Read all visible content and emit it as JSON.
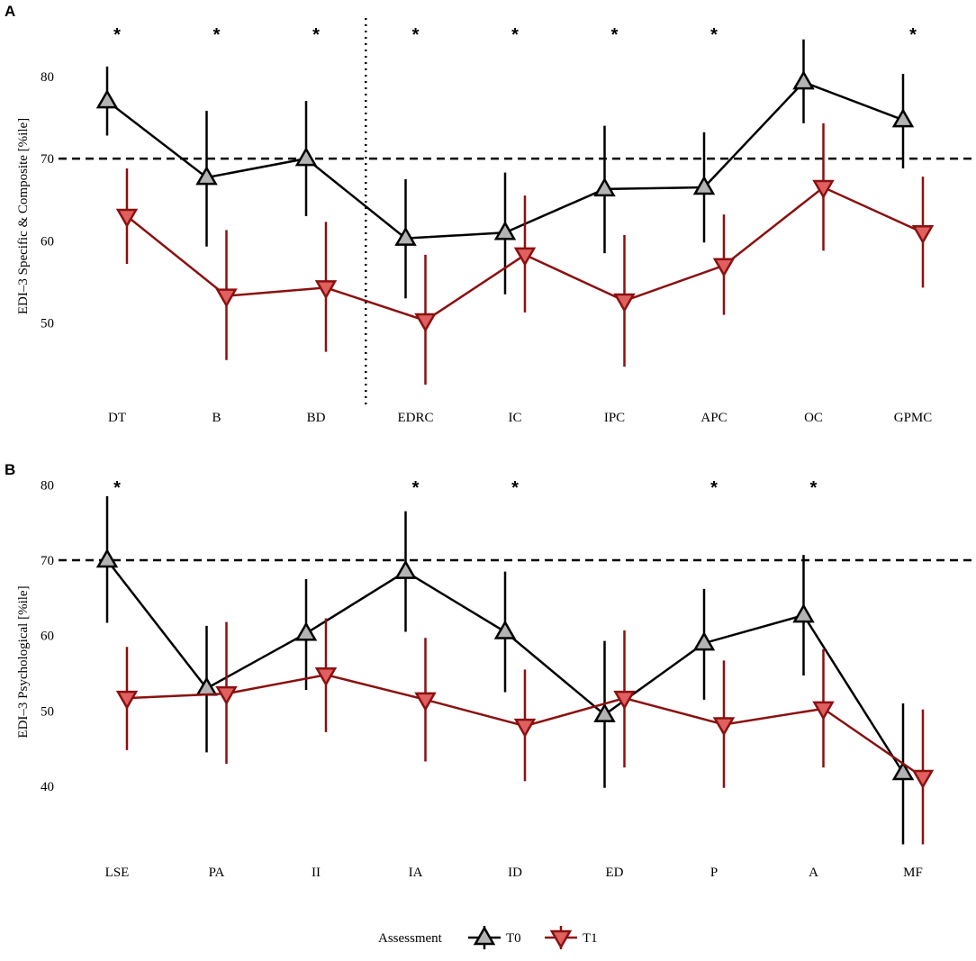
{
  "chart_data": [
    {
      "type": "line",
      "panel": "A",
      "ylabel": "EDI–3 Specific & Composite [%ile]",
      "ylim": [
        40,
        86
      ],
      "yticks": [
        50,
        60,
        70,
        80
      ],
      "threshold": 70,
      "divider_after_category": "BD",
      "categories": [
        "DT",
        "B",
        "BD",
        "EDRC",
        "IC",
        "IPC",
        "APC",
        "OC",
        "GPMC"
      ],
      "significance": [
        "*",
        "*",
        "*",
        "*",
        "*",
        "*",
        "*",
        "",
        "*"
      ],
      "series": [
        {
          "name": "T0",
          "marker": "triangle-up",
          "color": "#000000",
          "fill": "#b3b3b3",
          "values": [
            77,
            67.7,
            70,
            60.3,
            61,
            66.3,
            66.5,
            79.3,
            74.7
          ],
          "lower": [
            72.8,
            59.3,
            63,
            53,
            53.5,
            58.5,
            59.8,
            74.3,
            68.8
          ],
          "upper": [
            81.2,
            75.8,
            77,
            67.5,
            68.3,
            74,
            73.2,
            84.5,
            80.3
          ]
        },
        {
          "name": "T1",
          "marker": "triangle-down",
          "color": "#8b1010",
          "fill": "#e06060",
          "values": [
            63,
            53.3,
            54.3,
            50.3,
            58.3,
            52.7,
            57,
            66.5,
            61
          ],
          "lower": [
            57.2,
            45.5,
            46.5,
            42.5,
            51.3,
            44.7,
            51,
            58.8,
            54.3
          ],
          "upper": [
            68.8,
            61.3,
            62.3,
            58.3,
            65.5,
            60.7,
            63.2,
            74.3,
            67.8
          ]
        }
      ]
    },
    {
      "type": "line",
      "panel": "B",
      "ylabel": "EDI–3 Psychological [%ile]",
      "ylim": [
        32,
        81
      ],
      "yticks": [
        40,
        50,
        60,
        70,
        80
      ],
      "threshold": 70,
      "categories": [
        "LSE",
        "PA",
        "II",
        "IA",
        "ID",
        "ED",
        "P",
        "A",
        "MF"
      ],
      "significance": [
        "*",
        "",
        "",
        "*",
        "*",
        "",
        "*",
        "*",
        ""
      ],
      "series": [
        {
          "name": "T0",
          "marker": "triangle-up",
          "color": "#000000",
          "fill": "#b3b3b3",
          "values": [
            70,
            53,
            60.3,
            68.5,
            60.5,
            49.5,
            59,
            62.7,
            41.8
          ],
          "lower": [
            61.7,
            44.5,
            52.8,
            60.5,
            52.5,
            39.8,
            51.5,
            54.7,
            32.3
          ],
          "upper": [
            78.5,
            61.3,
            67.5,
            76.5,
            68.5,
            59.3,
            66.2,
            70.7,
            51
          ]
        },
        {
          "name": "T1",
          "marker": "triangle-down",
          "color": "#8b1010",
          "fill": "#e06060",
          "values": [
            51.7,
            52.3,
            54.8,
            51.5,
            48,
            51.7,
            48.2,
            50.3,
            41.2
          ],
          "lower": [
            44.8,
            43,
            47.2,
            43.3,
            40.7,
            42.5,
            39.8,
            42.5,
            32.3
          ],
          "upper": [
            58.5,
            61.8,
            62.3,
            59.7,
            55.5,
            60.7,
            56.7,
            58.2,
            50.2
          ]
        }
      ]
    }
  ],
  "legend": {
    "title": "Assessment",
    "entries": [
      {
        "label": "T0",
        "marker": "triangle-up",
        "color": "#000000",
        "fill": "#b3b3b3"
      },
      {
        "label": "T1",
        "marker": "triangle-down",
        "color": "#8b1010",
        "fill": "#e06060"
      }
    ]
  }
}
